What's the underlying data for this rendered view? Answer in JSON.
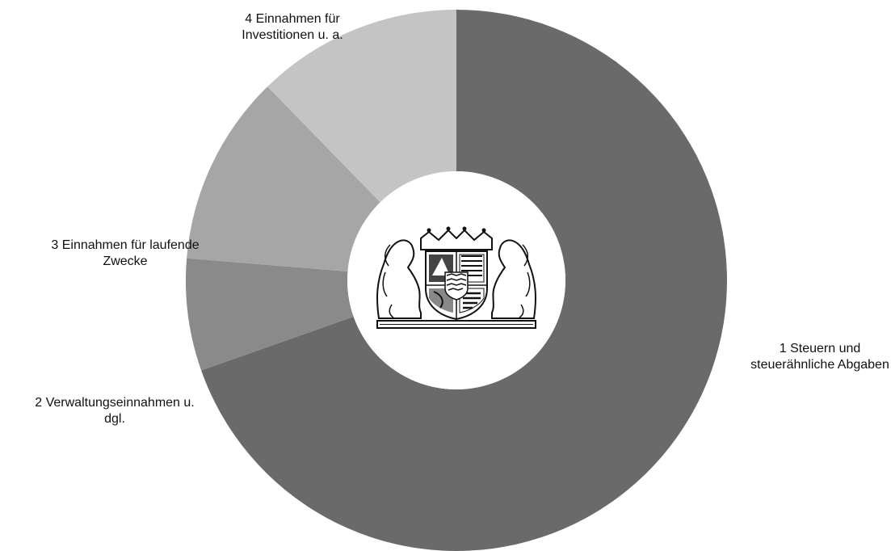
{
  "chart_data": {
    "type": "pie",
    "variant": "donut",
    "title": "",
    "categories": [
      "1 Steuern und steuerähnliche Abgaben",
      "2 Verwaltungseinnahmen u. dgl.",
      "3 Einnahmen für laufende Zwecke",
      "4 Einnahmen für Investitionen u. a."
    ],
    "values": [
      69.6,
      6.7,
      11.4,
      12.3
    ],
    "unit": "%",
    "colors": [
      "#6a6a6a",
      "#8a8a8a",
      "#a6a6a6",
      "#c4c4c4"
    ],
    "label_lines": [
      [
        "1 Steuern und",
        "steuerähnliche Abgaben"
      ],
      [
        "2 Verwaltungseinnahmen u.",
        "dgl."
      ],
      [
        "3 Einnahmen für laufende",
        "Zwecke"
      ],
      [
        "4 Einnahmen für",
        "Investitionen u. a."
      ]
    ],
    "start_angle_deg": 0,
    "direction": "clockwise",
    "legend": "none",
    "center_emblem": "bavarian-coat-of-arms"
  }
}
